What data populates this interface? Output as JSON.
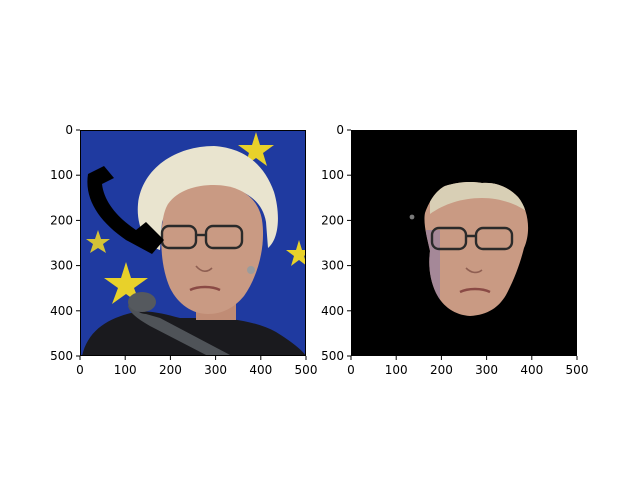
{
  "chart_data": [
    {
      "type": "image",
      "panel": "left",
      "description_visible": "photo with phone icon overlay",
      "xlim": [
        0,
        500
      ],
      "ylim": [
        500,
        0
      ],
      "xticks": [
        0,
        100,
        200,
        300,
        400,
        500
      ],
      "yticks": [
        0,
        100,
        200,
        300,
        400,
        500
      ],
      "xtick_labels": [
        "0",
        "100",
        "200",
        "300",
        "400",
        "500"
      ],
      "ytick_labels": [
        "0",
        "100",
        "200",
        "300",
        "400",
        "500"
      ]
    },
    {
      "type": "image",
      "panel": "right",
      "description_visible": "segmented face on black background",
      "xlim": [
        0,
        500
      ],
      "ylim": [
        500,
        0
      ],
      "xticks": [
        0,
        100,
        200,
        300,
        400,
        500
      ],
      "yticks": [
        0,
        100,
        200,
        300,
        400,
        500
      ],
      "xtick_labels": [
        "0",
        "100",
        "200",
        "300",
        "400",
        "500"
      ],
      "ytick_labels": [
        "0",
        "100",
        "200",
        "300",
        "400",
        "500"
      ]
    }
  ],
  "colors": {
    "flag_blue": "#1f3aa0",
    "star_yellow": "#e8d12a",
    "hair": "#e9e4cf",
    "skin": "#c99a83",
    "jacket": "#1a1a1e",
    "mic": "#4f5358",
    "phone": "#000000",
    "mask_bg": "#000000"
  },
  "icons": {
    "phone": "phone-icon"
  }
}
